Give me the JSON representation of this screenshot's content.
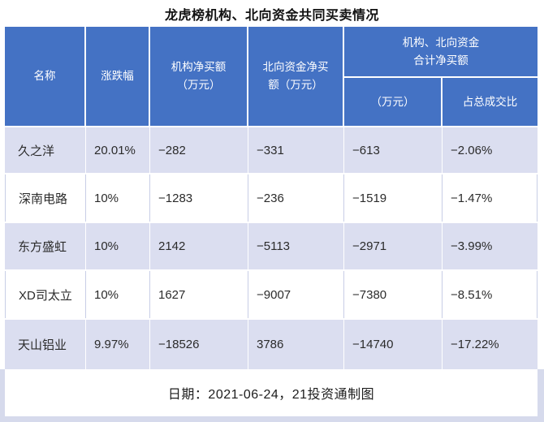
{
  "colors": {
    "header_bg": "#4472C4",
    "header_text": "#FFFFFF",
    "band_row_bg": "#DBDEF0",
    "plain_row_bg": "#FFFFFF",
    "frame": "#D6DAEC",
    "grid_line": "#C8CEE6"
  },
  "chart_data": {
    "type": "table",
    "title": "龙虎榜机构、北向资金共同买卖情况",
    "columns": [
      "名称",
      "涨跌幅",
      "机构净买额\n（万元）",
      "北向资金净买\n额（万元）",
      "（万元）",
      "占总成交比"
    ],
    "group_header": "机构、北向资金\n合计净买额",
    "rows": [
      [
        "久之洋",
        "20.01%",
        "−282",
        "−331",
        "−613",
        "−2.06%"
      ],
      [
        "深南电路",
        "10%",
        "−1283",
        "−236",
        "−1519",
        "−1.47%"
      ],
      [
        "东方盛虹",
        "10%",
        "2142",
        "−5113",
        "−2971",
        "−3.99%"
      ],
      [
        "XD司太立",
        "10%",
        "1627",
        "−9007",
        "−7380",
        "−8.51%"
      ],
      [
        "天山铝业",
        "9.97%",
        "−18526",
        "3786",
        "−14740",
        "−17.22%"
      ]
    ],
    "note": "日期：2021-06-24，21投资通制图"
  }
}
